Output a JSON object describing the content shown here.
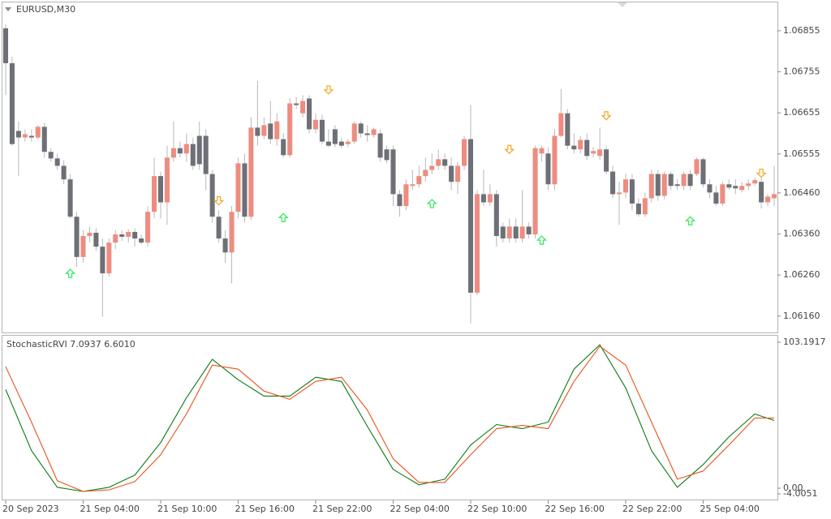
{
  "chart_data": [
    {
      "type": "candlestick",
      "title": "EURUSD,M30",
      "bull_color": "#ee8c80",
      "bear_color": "#6d7076",
      "wick_color": "#b8b8b8",
      "xlim": [
        -0.5,
        119.5
      ],
      "ylim": [
        1.0612,
        1.06924
      ],
      "yticks": [
        1.06855,
        1.06755,
        1.06655,
        1.06555,
        {
          "value": 1.0646,
          "label": "1.06460"
        },
        {
          "value": 1.0636,
          "label": "1.06360"
        },
        {
          "value": 1.0626,
          "label": "1.06260"
        },
        {
          "value": 1.0616,
          "label": "1.06160"
        }
      ],
      "xticks": [
        {
          "value": 0,
          "label": "20 Sep 2023"
        },
        {
          "value": 12,
          "label": "21 Sep 04:00"
        },
        {
          "value": 24,
          "label": "21 Sep 10:00"
        },
        {
          "value": 36,
          "label": "21 Sep 16:00"
        },
        {
          "value": 48,
          "label": "21 Sep 22:00"
        },
        {
          "value": 60,
          "label": "22 Sep 04:00"
        },
        {
          "value": 72,
          "label": "22 Sep 10:00"
        },
        {
          "value": 84,
          "label": "22 Sep 16:00"
        },
        {
          "value": 96,
          "label": "22 Sep 22:00"
        },
        {
          "value": 108,
          "label": "25 Sep 04:00"
        }
      ],
      "ohlc": [
        [
          1.06861,
          1.06871,
          1.06698,
          1.06776
        ],
        [
          1.06776,
          1.06792,
          1.06575,
          1.06579
        ],
        [
          1.06611,
          1.06634,
          1.06501,
          1.06595
        ],
        [
          1.06595,
          1.06615,
          1.06585,
          1.06603
        ],
        [
          1.06599,
          1.06615,
          1.06585,
          1.06595
        ],
        [
          1.06595,
          1.06625,
          1.06591,
          1.06621
        ],
        [
          1.06621,
          1.06631,
          1.06546,
          1.0656
        ],
        [
          1.0656,
          1.06569,
          1.06536,
          1.06544
        ],
        [
          1.06544,
          1.06556,
          1.06516,
          1.06526
        ],
        [
          1.06526,
          1.0654,
          1.06481,
          1.06493
        ],
        [
          1.06493,
          1.06506,
          1.06398,
          1.06402
        ],
        [
          1.06402,
          1.06414,
          1.0628,
          1.06304
        ],
        [
          1.06304,
          1.06369,
          1.0629,
          1.06355
        ],
        [
          1.06355,
          1.06378,
          1.06339,
          1.06363
        ],
        [
          1.06363,
          1.06374,
          1.06319,
          1.06329
        ],
        [
          1.06329,
          1.06349,
          1.06158,
          1.06264
        ],
        [
          1.06264,
          1.06349,
          1.06256,
          1.06339
        ],
        [
          1.06339,
          1.06369,
          1.06323,
          1.06359
        ],
        [
          1.06359,
          1.06369,
          1.06343,
          1.06353
        ],
        [
          1.06353,
          1.06372,
          1.06339,
          1.06365
        ],
        [
          1.06365,
          1.06374,
          1.06329,
          1.06349
        ],
        [
          1.06349,
          1.06359,
          1.06335,
          1.06339
        ],
        [
          1.06339,
          1.06428,
          1.06329,
          1.06414
        ],
        [
          1.06414,
          1.06546,
          1.06398,
          1.06501
        ],
        [
          1.06501,
          1.06512,
          1.06398,
          1.06437
        ],
        [
          1.06437,
          1.06575,
          1.06382,
          1.06546
        ],
        [
          1.06546,
          1.06634,
          1.06536,
          1.06569
        ],
        [
          1.06569,
          1.06585,
          1.06546,
          1.06556
        ],
        [
          1.06556,
          1.06605,
          1.06536,
          1.06579
        ],
        [
          1.06579,
          1.06595,
          1.06516,
          1.06526
        ],
        [
          1.06599,
          1.06634,
          1.06516,
          1.0653
        ],
        [
          1.06599,
          1.06615,
          1.06467,
          1.06506
        ],
        [
          1.06506,
          1.06516,
          1.06388,
          1.06402
        ],
        [
          1.06402,
          1.06418,
          1.06339,
          1.06349
        ],
        [
          1.06349,
          1.06369,
          1.0629,
          1.06315
        ],
        [
          1.06315,
          1.06428,
          1.0624,
          1.06414
        ],
        [
          1.06414,
          1.06546,
          1.06398,
          1.06532
        ],
        [
          1.06532,
          1.06556,
          1.06388,
          1.06402
        ],
        [
          1.06402,
          1.06644,
          1.06394,
          1.06619
        ],
        [
          1.06619,
          1.06733,
          1.06575,
          1.06599
        ],
        [
          1.06599,
          1.06644,
          1.06591,
          1.06625
        ],
        [
          1.06629,
          1.06684,
          1.06579,
          1.06591
        ],
        [
          1.06591,
          1.06654,
          1.06575,
          1.06634
        ],
        [
          1.06591,
          1.06605,
          1.06546,
          1.06552
        ],
        [
          1.06552,
          1.0669,
          1.06546,
          1.06678
        ],
        [
          1.06678,
          1.06694,
          1.06664,
          1.06674
        ],
        [
          1.06654,
          1.06698,
          1.06644,
          1.06684
        ],
        [
          1.0669,
          1.06698,
          1.06605,
          1.06615
        ],
        [
          1.06615,
          1.06654,
          1.06605,
          1.06638
        ],
        [
          1.06638,
          1.0665,
          1.06579,
          1.06585
        ],
        [
          1.06585,
          1.06615,
          1.06571,
          1.06575
        ],
        [
          1.06615,
          1.06625,
          1.06571,
          1.06579
        ],
        [
          1.06585,
          1.06595,
          1.06569,
          1.06575
        ],
        [
          1.06579,
          1.06591,
          1.06571,
          1.06585
        ],
        [
          1.06585,
          1.06634,
          1.06579,
          1.06629
        ],
        [
          1.06629,
          1.06634,
          1.06595,
          1.06605
        ],
        [
          1.06605,
          1.06625,
          1.06585,
          1.06601
        ],
        [
          1.06601,
          1.06619,
          1.06595,
          1.06615
        ],
        [
          1.06605,
          1.06615,
          1.06536,
          1.06546
        ],
        [
          1.06566,
          1.06575,
          1.06532,
          1.0654
        ],
        [
          1.06566,
          1.06575,
          1.06428,
          1.06457
        ],
        [
          1.06457,
          1.06467,
          1.06402,
          1.06428
        ],
        [
          1.06428,
          1.06493,
          1.06418,
          1.06481
        ],
        [
          1.06477,
          1.06516,
          1.06467,
          1.06481
        ],
        [
          1.06481,
          1.06526,
          1.06473,
          1.06501
        ],
        [
          1.06501,
          1.06546,
          1.06487,
          1.06516
        ],
        [
          1.06516,
          1.06556,
          1.06506,
          1.06526
        ],
        [
          1.06526,
          1.06566,
          1.06516,
          1.06542
        ],
        [
          1.06542,
          1.06556,
          1.06516,
          1.06526
        ],
        [
          1.06526,
          1.06546,
          1.06467,
          1.06487
        ],
        [
          1.06487,
          1.06536,
          1.06457,
          1.06526
        ],
        [
          1.06526,
          1.06599,
          1.06516,
          1.06591
        ],
        [
          1.06591,
          1.06674,
          1.06142,
          1.06217
        ],
        [
          1.06217,
          1.06467,
          1.06211,
          1.06457
        ],
        [
          1.06457,
          1.06516,
          1.06428,
          1.06437
        ],
        [
          1.06437,
          1.06481,
          1.06428,
          1.06457
        ],
        [
          1.06457,
          1.06467,
          1.06329,
          1.06355
        ],
        [
          1.06378,
          1.06388,
          1.06339,
          1.06349
        ],
        [
          1.06349,
          1.06398,
          1.06339,
          1.06378
        ],
        [
          1.06378,
          1.06398,
          1.06339,
          1.06349
        ],
        [
          1.06349,
          1.06467,
          1.06339,
          1.06378
        ],
        [
          1.06378,
          1.06388,
          1.06349,
          1.06359
        ],
        [
          1.06359,
          1.06575,
          1.06349,
          1.06569
        ],
        [
          1.06556,
          1.06575,
          1.06536,
          1.06569
        ],
        [
          1.06556,
          1.06571,
          1.06467,
          1.06481
        ],
        [
          1.06481,
          1.06615,
          1.06467,
          1.06599
        ],
        [
          1.06599,
          1.06713,
          1.06595,
          1.06654
        ],
        [
          1.06654,
          1.06664,
          1.06566,
          1.06575
        ],
        [
          1.06575,
          1.06605,
          1.06556,
          1.06566
        ],
        [
          1.06566,
          1.06599,
          1.06556,
          1.06589
        ],
        [
          1.06589,
          1.06605,
          1.0654,
          1.0655
        ],
        [
          1.06556,
          1.06571,
          1.06546,
          1.06562
        ],
        [
          1.0655,
          1.06619,
          1.0654,
          1.06566
        ],
        [
          1.06566,
          1.06575,
          1.06506,
          1.06512
        ],
        [
          1.06512,
          1.06526,
          1.06447,
          1.06457
        ],
        [
          1.06457,
          1.06487,
          1.06382,
          1.06461
        ],
        [
          1.06461,
          1.06506,
          1.06447,
          1.06493
        ],
        [
          1.06493,
          1.06506,
          1.06418,
          1.06434
        ],
        [
          1.06434,
          1.06447,
          1.06402,
          1.06408
        ],
        [
          1.06408,
          1.06461,
          1.06402,
          1.06447
        ],
        [
          1.06447,
          1.06516,
          1.06437,
          1.06506
        ],
        [
          1.06506,
          1.06516,
          1.06441,
          1.06453
        ],
        [
          1.06453,
          1.06512,
          1.06445,
          1.06506
        ],
        [
          1.06506,
          1.06512,
          1.06467,
          1.06477
        ],
        [
          1.06481,
          1.06493,
          1.06467,
          1.06477
        ],
        [
          1.06477,
          1.06512,
          1.06467,
          1.06506
        ],
        [
          1.06506,
          1.06516,
          1.06467,
          1.06477
        ],
        [
          1.06506,
          1.06546,
          1.06501,
          1.06542
        ],
        [
          1.06542,
          1.06546,
          1.06473,
          1.06481
        ],
        [
          1.06481,
          1.06493,
          1.06447,
          1.06461
        ],
        [
          1.06461,
          1.06477,
          1.06428,
          1.06434
        ],
        [
          1.06434,
          1.06487,
          1.06428,
          1.06481
        ],
        [
          1.06481,
          1.06493,
          1.06467,
          1.06473
        ],
        [
          1.06477,
          1.06493,
          1.06457,
          1.06471
        ],
        [
          1.06467,
          1.06487,
          1.06461,
          1.06477
        ],
        [
          1.06477,
          1.06493,
          1.06467,
          1.06483
        ],
        [
          1.06483,
          1.06497,
          1.06477,
          1.06491
        ],
        [
          1.06487,
          1.06497,
          1.06422,
          1.06437
        ],
        [
          1.06437,
          1.06457,
          1.06428,
          1.06451
        ],
        [
          1.06447,
          1.06526,
          1.06428,
          1.06457
        ]
      ],
      "up_color": "#2ee85a",
      "down_color": "#f5a524",
      "arrows": [
        {
          "dir": "down",
          "index": 50,
          "price": 1.06711
        },
        {
          "dir": "down",
          "index": 33,
          "price": 1.06441
        },
        {
          "dir": "down",
          "index": 78,
          "price": 1.06566
        },
        {
          "dir": "down",
          "index": 93,
          "price": 1.06648
        },
        {
          "dir": "down",
          "index": 117,
          "price": 1.06508
        },
        {
          "dir": "up",
          "index": 10,
          "price": 1.06264
        },
        {
          "dir": "up",
          "index": 43,
          "price": 1.064
        },
        {
          "dir": "up",
          "index": 66,
          "price": 1.06434
        },
        {
          "dir": "up",
          "index": 83,
          "price": 1.06345
        },
        {
          "dir": "up",
          "index": 106,
          "price": 1.06392
        }
      ]
    },
    {
      "type": "line",
      "title": "StochasticRVI 7.0937 6.6010",
      "xlim": [
        -0.5,
        119.5
      ],
      "ylim": [
        -8.04,
        107.8
      ],
      "yticks": [
        103.1917,
        {
          "value": 0,
          "label": "0.00"
        },
        -4.0051
      ],
      "x": [
        0,
        4,
        8,
        12,
        16,
        20,
        24,
        28,
        32,
        36,
        40,
        44,
        48,
        52,
        56,
        60,
        64,
        68,
        72,
        76,
        80,
        84,
        88,
        92,
        96,
        100,
        104,
        108,
        112,
        116,
        119
      ],
      "series": [
        {
          "color": "#0b7a12",
          "values": [
            69.76,
            26.53,
            0.6,
            -2.29,
            0.6,
            9.24,
            32.3,
            64.0,
            91.09,
            76.68,
            65.15,
            65.15,
            78.41,
            75.52,
            43.82,
            13.28,
            2.33,
            6.36,
            30.57,
            44.98,
            42.09,
            46.71,
            84.17,
            101.46,
            70.91,
            26.53,
            0.6,
            16.73,
            36.33,
            52.47,
            47.86
          ]
        },
        {
          "color": "#e8521c",
          "values": [
            85.9,
            46.71,
            5.21,
            -2.29,
            -1.13,
            4.63,
            23.65,
            52.47,
            87.05,
            84.17,
            68.61,
            62.84,
            75.52,
            78.41,
            55.35,
            20.77,
            4.05,
            4.05,
            23.65,
            42.09,
            44.4,
            42.09,
            75.52,
            100.31,
            87.05,
            46.71,
            6.36,
            12.12,
            30.57,
            49.59,
            49.59
          ]
        }
      ]
    }
  ]
}
